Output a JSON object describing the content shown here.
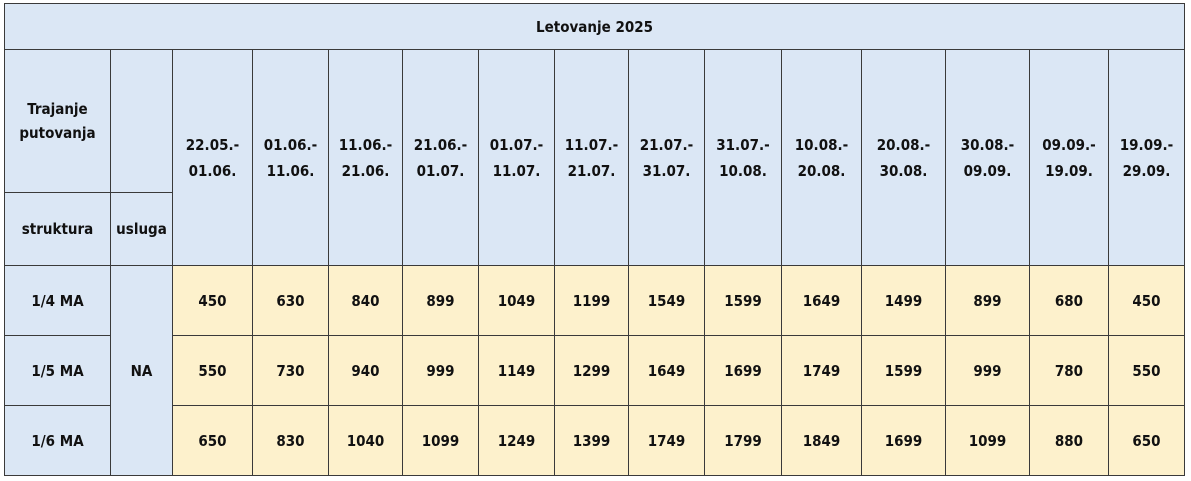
{
  "table": {
    "title": "Letovanje 2025",
    "duration_label": "Trajanje putovanja",
    "structure_label": "struktura",
    "service_label": "usluga",
    "periods": [
      {
        "from": "22.05.-",
        "to": "01.06."
      },
      {
        "from": "01.06.-",
        "to": "11.06."
      },
      {
        "from": "11.06.-",
        "to": "21.06."
      },
      {
        "from": "21.06.-",
        "to": "01.07."
      },
      {
        "from": "01.07.-",
        "to": "11.07."
      },
      {
        "from": "11.07.-",
        "to": "21.07."
      },
      {
        "from": "21.07.-",
        "to": "31.07."
      },
      {
        "from": "31.07.-",
        "to": "10.08."
      },
      {
        "from": "10.08.-",
        "to": "20.08."
      },
      {
        "from": "20.08.-",
        "to": "30.08."
      },
      {
        "from": "30.08.-",
        "to": "09.09."
      },
      {
        "from": "09.09.-",
        "to": "19.09."
      },
      {
        "from": "19.09.-",
        "to": "29.09."
      }
    ],
    "service": "NA",
    "rows": [
      {
        "structure": "1/4 MA",
        "prices": [
          "450",
          "630",
          "840",
          "899",
          "1049",
          "1199",
          "1549",
          "1599",
          "1649",
          "1499",
          "899",
          "680",
          "450"
        ]
      },
      {
        "structure": "1/5 MA",
        "prices": [
          "550",
          "730",
          "940",
          "999",
          "1149",
          "1299",
          "1649",
          "1699",
          "1749",
          "1599",
          "999",
          "780",
          "550"
        ]
      },
      {
        "structure": "1/6 MA",
        "prices": [
          "650",
          "830",
          "1040",
          "1099",
          "1249",
          "1399",
          "1749",
          "1799",
          "1849",
          "1699",
          "1099",
          "880",
          "650"
        ]
      }
    ]
  }
}
